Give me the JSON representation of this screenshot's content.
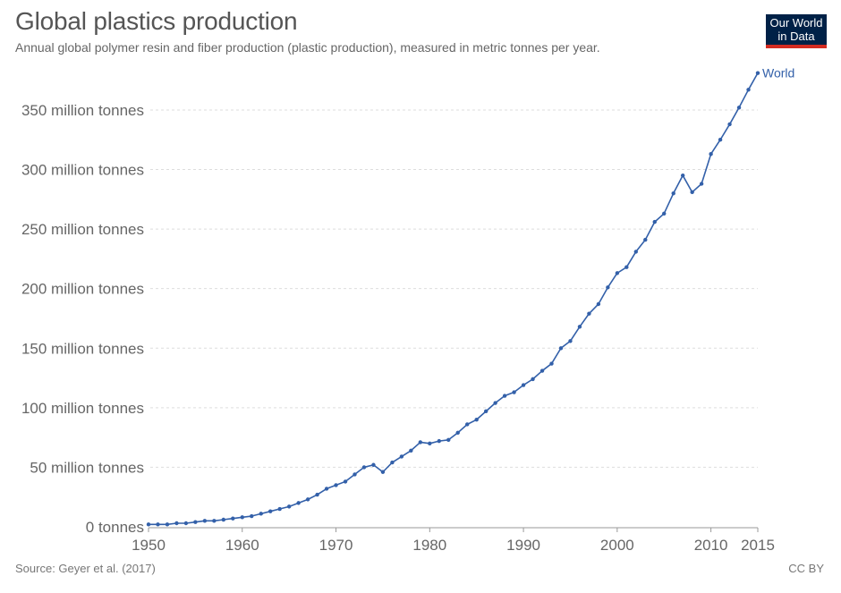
{
  "title": "Global plastics production",
  "subtitle": "Annual global polymer resin and fiber production (plastic production), measured in metric tonnes per year.",
  "logo": {
    "line1": "Our World",
    "line2": "in Data"
  },
  "source": "Source: Geyer et al. (2017)",
  "license": "CC BY",
  "colors": {
    "series": "#3360a9",
    "grid": "#dddddd",
    "text": "#666666",
    "logo_bg": "#002147",
    "logo_accent": "#d42b21"
  },
  "chart_data": {
    "type": "line",
    "title": "Global plastics production",
    "ylim": [
      0,
      380
    ],
    "xlim": [
      1950,
      2015
    ],
    "grid": true,
    "y_ticks": [
      {
        "value": 0,
        "label": "0 tonnes"
      },
      {
        "value": 50,
        "label": "50 million tonnes"
      },
      {
        "value": 100,
        "label": "100 million tonnes"
      },
      {
        "value": 150,
        "label": "150 million tonnes"
      },
      {
        "value": 200,
        "label": "200 million tonnes"
      },
      {
        "value": 250,
        "label": "250 million tonnes"
      },
      {
        "value": 300,
        "label": "300 million tonnes"
      },
      {
        "value": 350,
        "label": "350 million tonnes"
      }
    ],
    "x_ticks": [
      {
        "value": 1950,
        "label": "1950"
      },
      {
        "value": 1960,
        "label": "1960"
      },
      {
        "value": 1970,
        "label": "1970"
      },
      {
        "value": 1980,
        "label": "1980"
      },
      {
        "value": 1990,
        "label": "1990"
      },
      {
        "value": 2000,
        "label": "2000"
      },
      {
        "value": 2010,
        "label": "2010"
      },
      {
        "value": 2015,
        "label": "2015"
      }
    ],
    "series": [
      {
        "name": "World",
        "x": [
          1950,
          1951,
          1952,
          1953,
          1954,
          1955,
          1956,
          1957,
          1958,
          1959,
          1960,
          1961,
          1962,
          1963,
          1964,
          1965,
          1966,
          1967,
          1968,
          1969,
          1970,
          1971,
          1972,
          1973,
          1974,
          1975,
          1976,
          1977,
          1978,
          1979,
          1980,
          1981,
          1982,
          1983,
          1984,
          1985,
          1986,
          1987,
          1988,
          1989,
          1990,
          1991,
          1992,
          1993,
          1994,
          1995,
          1996,
          1997,
          1998,
          1999,
          2000,
          2001,
          2002,
          2003,
          2004,
          2005,
          2006,
          2007,
          2008,
          2009,
          2010,
          2011,
          2012,
          2013,
          2014,
          2015
        ],
        "y": [
          2,
          2,
          2,
          3,
          3,
          4,
          5,
          5,
          6,
          7,
          8,
          9,
          11,
          13,
          15,
          17,
          20,
          23,
          27,
          32,
          35,
          38,
          44,
          50,
          52,
          46,
          54,
          59,
          64,
          71,
          70,
          72,
          73,
          79,
          86,
          90,
          97,
          104,
          110,
          113,
          119,
          124,
          131,
          137,
          150,
          156,
          168,
          179,
          187,
          201,
          213,
          218,
          231,
          241,
          256,
          263,
          280,
          295,
          281,
          288,
          313,
          325,
          338,
          352,
          367,
          381
        ]
      }
    ]
  }
}
